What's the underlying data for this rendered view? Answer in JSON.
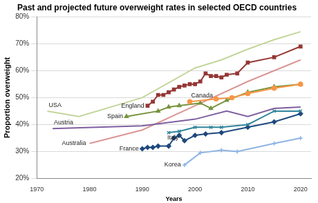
{
  "chart_data": {
    "type": "line",
    "title": "Past and projected future overweight rates in selected OECD countries",
    "x_label": "Years",
    "y_label": "Proportion overweight",
    "xlim": [
      1970,
      2022
    ],
    "xticks": [
      1970,
      1980,
      1990,
      2000,
      2010,
      2020
    ],
    "ylim": [
      20,
      80
    ],
    "yticks": [
      {
        "value": 20,
        "label": "20%"
      },
      {
        "value": 30,
        "label": "30%"
      },
      {
        "value": 40,
        "label": "40%"
      },
      {
        "value": 50,
        "label": "50%"
      },
      {
        "value": 60,
        "label": "60%"
      },
      {
        "value": 70,
        "label": "70%"
      },
      {
        "value": 80,
        "label": "80%"
      }
    ],
    "grid": true,
    "series": [
      {
        "name": "USA",
        "color": "#c3d69b",
        "marker": "none",
        "x": [
          1972,
          1978,
          1990,
          2000,
          2005,
          2010,
          2015,
          2020
        ],
        "values": [
          45,
          43,
          50,
          61,
          64,
          68,
          71.5,
          74.5
        ]
      },
      {
        "name": "England",
        "color": "#953735",
        "marker": "rect",
        "x": [
          1991,
          1992,
          1993,
          1994,
          1995,
          1996,
          1997,
          1998,
          1999,
          2000,
          2001,
          2002,
          2003,
          2004,
          2005,
          2006,
          2008,
          2010,
          2015,
          2020
        ],
        "values": [
          47,
          48.5,
          51,
          51,
          52,
          53,
          54,
          54.5,
          55,
          55,
          56,
          59,
          58,
          58,
          57.5,
          58.5,
          59,
          63,
          65,
          69
        ]
      },
      {
        "name": "Canada",
        "color": "#f79646",
        "marker": "circle",
        "x": [
          1999,
          2004,
          2007,
          2010,
          2015,
          2020
        ],
        "values": [
          48.5,
          49.5,
          50,
          51.5,
          53.5,
          55
        ]
      },
      {
        "name": "Spain",
        "color": "#77933c",
        "marker": "triangle",
        "x": [
          1987,
          1993,
          1995,
          1997,
          2001,
          2003,
          2006,
          2010,
          2015,
          2020
        ],
        "values": [
          43,
          45,
          46.5,
          47,
          48,
          46,
          49,
          52,
          54,
          55
        ]
      },
      {
        "name": "Austria",
        "color": "#7f5fa0",
        "marker": "none",
        "x": [
          1973,
          1990,
          2000,
          2006,
          2010,
          2015,
          2020
        ],
        "values": [
          38.5,
          39.5,
          42,
          45,
          43,
          46,
          46.5
        ]
      },
      {
        "name": "Australia",
        "color": "#da9694",
        "marker": "none",
        "x": [
          1980,
          1990,
          2000,
          2010,
          2020
        ],
        "values": [
          33,
          38,
          47,
          56,
          64
        ]
      },
      {
        "name": "Italy",
        "color": "#31859c",
        "marker": "crossRot",
        "x": [
          1995,
          1997,
          2000,
          2003,
          2005,
          2010,
          2015,
          2020
        ],
        "values": [
          37,
          37.5,
          39,
          39,
          39,
          40,
          45,
          45
        ]
      },
      {
        "name": "France",
        "color": "#1f497d",
        "marker": "rectRot",
        "x": [
          1990,
          1991,
          1992,
          1993,
          1995,
          1996,
          1997,
          1998,
          2000,
          2002,
          2005,
          2010,
          2015,
          2020
        ],
        "values": [
          31,
          31.5,
          31.5,
          32,
          32,
          35,
          36,
          34,
          36,
          36.5,
          37,
          39,
          41,
          44
        ]
      },
      {
        "name": "Korea",
        "color": "#8eb4e3",
        "marker": "cross",
        "x": [
          1998,
          2001,
          2005,
          2008,
          2015,
          2020
        ],
        "values": [
          25,
          29.5,
          30.5,
          30,
          33,
          35
        ]
      }
    ]
  }
}
